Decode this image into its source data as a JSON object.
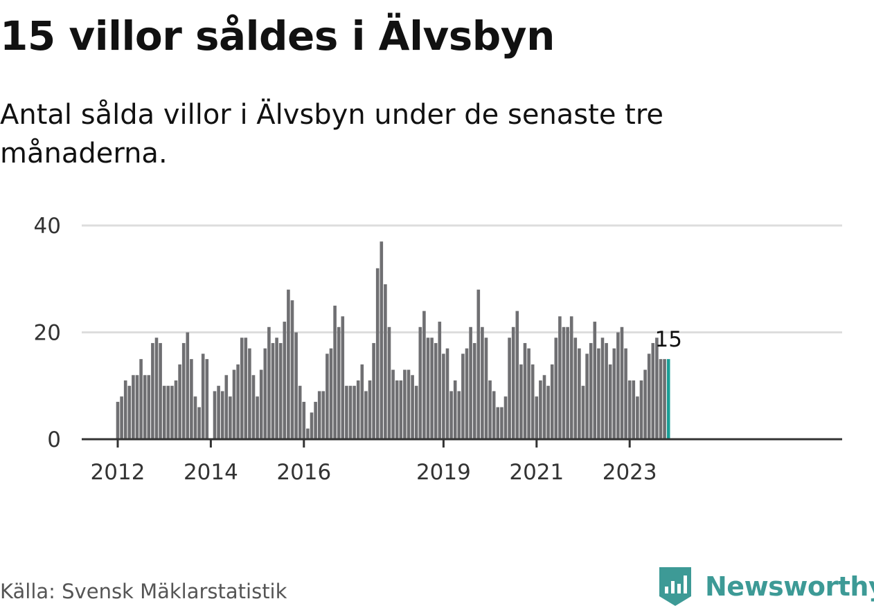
{
  "title": "15 villor såldes i Älvsbyn",
  "subtitle": "Antal sålda villor i Älvsbyn under de senaste tre månaderna.",
  "source": "Källa: Svensk Mäklarstatistik",
  "brand": {
    "name": "Newsworthy",
    "icon": "newsworthy-logo-icon",
    "color": "#3d9a96"
  },
  "colors": {
    "bar": "#6f6f72",
    "highlight": "#1a9e96",
    "grid": "#dddddd",
    "axis": "#333333"
  },
  "chart_data": {
    "type": "bar",
    "title": "15 villor såldes i Älvsbyn",
    "xlabel": "",
    "ylabel": "",
    "ylim": [
      0,
      40
    ],
    "yticks": [
      "0",
      "20",
      "40"
    ],
    "xticks": [
      {
        "index": 0,
        "label": "2012"
      },
      {
        "index": 24,
        "label": "2014"
      },
      {
        "index": 48,
        "label": "2016"
      },
      {
        "index": 84,
        "label": "2019"
      },
      {
        "index": 108,
        "label": "2021"
      },
      {
        "index": 132,
        "label": "2023"
      }
    ],
    "series": [
      {
        "name": "Antal sålda villor (senaste tre månaderna)",
        "values": [
          7,
          8,
          11,
          10,
          12,
          12,
          15,
          12,
          12,
          18,
          19,
          18,
          10,
          10,
          10,
          11,
          14,
          18,
          20,
          15,
          8,
          6,
          16,
          15,
          0,
          9,
          10,
          9,
          12,
          8,
          13,
          14,
          19,
          19,
          17,
          12,
          8,
          13,
          17,
          21,
          18,
          19,
          18,
          22,
          28,
          26,
          20,
          10,
          7,
          2,
          5,
          7,
          9,
          9,
          16,
          17,
          25,
          21,
          23,
          10,
          10,
          10,
          11,
          14,
          9,
          11,
          18,
          32,
          37,
          29,
          21,
          13,
          11,
          11,
          13,
          13,
          12,
          10,
          21,
          24,
          19,
          19,
          18,
          22,
          16,
          17,
          9,
          11,
          9,
          16,
          17,
          21,
          18,
          28,
          21,
          19,
          11,
          9,
          6,
          6,
          8,
          19,
          21,
          24,
          14,
          18,
          17,
          14,
          8,
          11,
          12,
          10,
          14,
          19,
          23,
          21,
          21,
          23,
          19,
          17,
          10,
          16,
          18,
          22,
          17,
          19,
          18,
          14,
          17,
          20,
          21,
          17,
          11,
          11,
          8,
          11,
          13,
          16,
          18,
          19,
          15,
          15,
          15
        ]
      }
    ],
    "highlight": {
      "index": 142,
      "label": "15"
    }
  }
}
